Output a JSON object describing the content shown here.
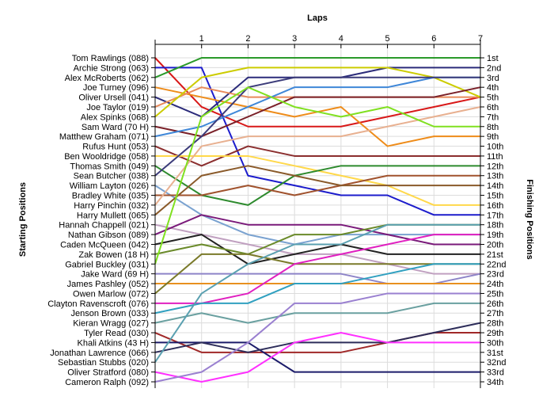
{
  "chart_data": {
    "type": "line",
    "title": "Laps",
    "ylabel_left": "Starting Positions",
    "ylabel_right": "Finishing Positions",
    "x": [
      0,
      1,
      2,
      3,
      4,
      5,
      6,
      7
    ],
    "xlim": [
      0,
      7
    ],
    "ylim": [
      1,
      34
    ],
    "y_inverted": true,
    "grid": true,
    "starting_labels": [
      "Tom Rawlings (088)",
      "Archie Strong (063)",
      "Alex McRoberts (062)",
      "Joe Turney (096)",
      "Oliver Ursell (041)",
      "Joe Taylor (019)",
      "Alex Spinks (068)",
      "Sam Ward (70 H)",
      "Matthew Graham (071)",
      "Rufus Hunt (053)",
      "Ben Wooldridge (058)",
      "Thomas Smith (049)",
      "Sean Butcher (038)",
      "William Layton (026)",
      "Bradley White (035)",
      "Harry Pinchin (032)",
      "Harry Mullett (065)",
      "Hannah Chappell (021)",
      "Nathan Gibson (089)",
      "Caden McQueen (042)",
      "Zak Bowen (18 H)",
      "Gabriel Buckley (031)",
      "Jake Ward (69 H)",
      "James Pashley (052)",
      "Owen Marlow (072)",
      "Clayton Ravenscroft (076)",
      "Jenson Brown (033)",
      "Kieran Wragg (027)",
      "Tyler Read (030)",
      "Khali Atkins (43 H)",
      "Jonathan Lawrence (066)",
      "Sebastian Stubbs (020)",
      "Oliver Stratford (080)",
      "Cameron Ralph (092)"
    ],
    "finishing_labels": [
      "1st",
      "2nd",
      "3rd",
      "4th",
      "5th",
      "6th",
      "7th",
      "8th",
      "9th",
      "10th",
      "11th",
      "12th",
      "13th",
      "14th",
      "15th",
      "16th",
      "17th",
      "18th",
      "19th",
      "20th",
      "21st",
      "22nd",
      "23rd",
      "24th",
      "25th",
      "26th",
      "27th",
      "28th",
      "29th",
      "30th",
      "31st",
      "32nd",
      "33rd",
      "34th"
    ],
    "series": [
      {
        "color": "#d81818",
        "values": [
          1,
          6,
          8,
          8,
          8,
          7,
          6,
          5
        ]
      },
      {
        "color": "#1c1ccc",
        "values": [
          2,
          2,
          13,
          14,
          15,
          15,
          17,
          17
        ]
      },
      {
        "color": "#2a9a2a",
        "values": [
          3,
          1,
          1,
          1,
          1,
          1,
          1,
          1
        ]
      },
      {
        "color": "#ee8c1a",
        "values": [
          4,
          5,
          6,
          7,
          6,
          10,
          9,
          9
        ]
      },
      {
        "color": "#2b2b7a",
        "values": [
          5,
          7,
          3,
          3,
          3,
          2,
          2,
          2
        ]
      },
      {
        "color": "#e88a5a",
        "values": [
          6,
          4,
          5,
          5,
          5,
          5,
          5,
          5
        ]
      },
      {
        "color": "#cccc00",
        "values": [
          7,
          3,
          2,
          2,
          2,
          2,
          3,
          5
        ]
      },
      {
        "color": "#7a2028",
        "values": [
          8,
          9,
          7,
          5,
          5,
          5,
          5,
          4
        ]
      },
      {
        "color": "#3f87d8",
        "values": [
          9,
          8,
          6,
          4,
          4,
          4,
          3,
          3
        ]
      },
      {
        "color": "#8b2e2e",
        "values": [
          10,
          12,
          10,
          11,
          11,
          11,
          11,
          11
        ]
      },
      {
        "color": "#ffd84a",
        "values": [
          11,
          11,
          11,
          12,
          13,
          14,
          16,
          16
        ]
      },
      {
        "color": "#2d8a2d",
        "values": [
          12,
          15,
          16,
          13,
          12,
          12,
          12,
          12
        ]
      },
      {
        "color": "#3c3c7a",
        "values": [
          13,
          9,
          4,
          3,
          3,
          3,
          3,
          3
        ]
      },
      {
        "color": "#7aa2d0",
        "values": [
          14,
          17,
          19,
          20,
          19,
          19,
          19,
          19
        ]
      },
      {
        "color": "#a0522d",
        "values": [
          15,
          15,
          14,
          15,
          14,
          13,
          13,
          13
        ]
      },
      {
        "color": "#e8b090",
        "values": [
          16,
          10,
          9,
          9,
          9,
          8,
          7,
          6
        ]
      },
      {
        "color": "#8a5a2a",
        "values": [
          17,
          13,
          12,
          13,
          14,
          14,
          14,
          14
        ]
      },
      {
        "color": "#c0a0c0",
        "values": [
          18,
          19,
          20,
          21,
          21,
          22,
          23,
          23
        ]
      },
      {
        "color": "#7a1a7a",
        "values": [
          19,
          17,
          18,
          18,
          18,
          19,
          20,
          20
        ]
      },
      {
        "color": "#222222",
        "values": [
          20,
          19,
          22,
          21,
          20,
          21,
          21,
          21
        ]
      },
      {
        "color": "#6a8a2a",
        "values": [
          21,
          20,
          21,
          19,
          19,
          18,
          18,
          18
        ]
      },
      {
        "color": "#80e020",
        "values": [
          22,
          7,
          4,
          6,
          7,
          6,
          8,
          8
        ]
      },
      {
        "color": "#8e84c8",
        "values": [
          23,
          23,
          23,
          23,
          23,
          24,
          24,
          23
        ]
      },
      {
        "color": "#e89020",
        "values": [
          24,
          24,
          24,
          24,
          24,
          24,
          24,
          24
        ]
      },
      {
        "color": "#7a7a2a",
        "values": [
          25,
          21,
          21,
          22,
          22,
          22,
          22,
          22
        ]
      },
      {
        "color": "#e020c0",
        "values": [
          26,
          26,
          25,
          22,
          21,
          20,
          19,
          19
        ]
      },
      {
        "color": "#30a0c0",
        "values": [
          27,
          26,
          26,
          24,
          24,
          23,
          22,
          22
        ]
      },
      {
        "color": "#6aa0a0",
        "values": [
          28,
          27,
          28,
          27,
          27,
          27,
          26,
          26
        ]
      },
      {
        "color": "#a02828",
        "values": [
          29,
          31,
          31,
          31,
          31,
          30,
          29,
          29
        ]
      },
      {
        "color": "#1c1c6a",
        "values": [
          30,
          30,
          30,
          33,
          33,
          33,
          33,
          33
        ]
      },
      {
        "color": "#2d2d5a",
        "values": [
          31,
          30,
          31,
          30,
          30,
          30,
          29,
          28
        ]
      },
      {
        "color": "#5aa0b0",
        "values": [
          32,
          25,
          22,
          20,
          20,
          18,
          18,
          18
        ]
      },
      {
        "color": "#ff30ff",
        "values": [
          33,
          34,
          33,
          30,
          29,
          30,
          30,
          30
        ]
      },
      {
        "color": "#9a80d0",
        "values": [
          34,
          33,
          30,
          26,
          26,
          25,
          25,
          25
        ]
      }
    ]
  }
}
